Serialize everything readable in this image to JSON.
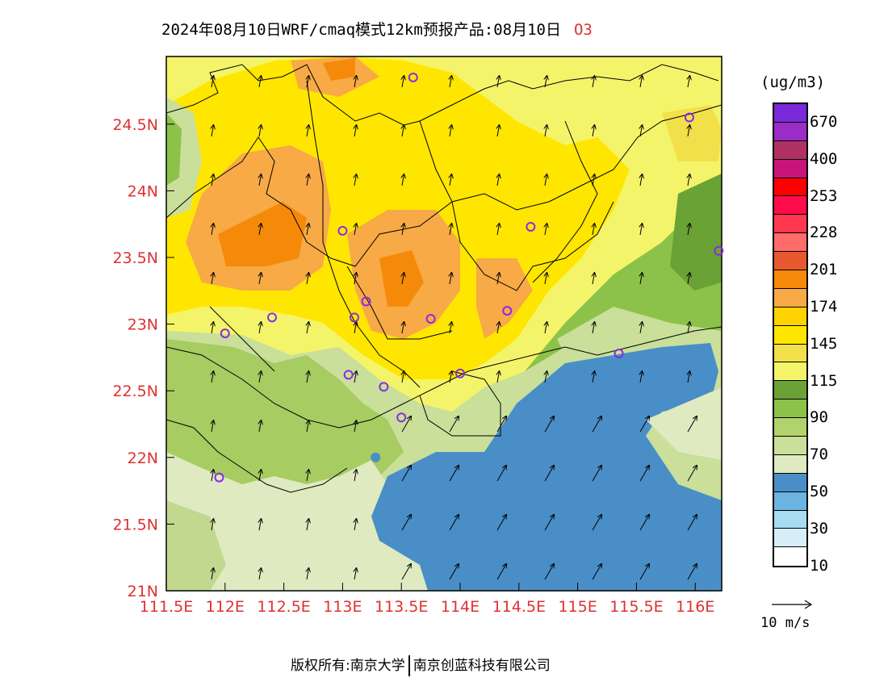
{
  "title": {
    "main": "2024年08月10日WRF/cmaq模式12km预报产品:08月10日",
    "species": "O3"
  },
  "axes": {
    "x_ticks": [
      "111.5E",
      "112E",
      "112.5E",
      "113E",
      "113.5E",
      "114E",
      "114.5E",
      "115E",
      "115.5E",
      "116E"
    ],
    "y_ticks": [
      "21N",
      "21.5N",
      "22N",
      "22.5N",
      "23N",
      "23.5N",
      "24N",
      "24.5N"
    ],
    "lon_range": [
      111.5,
      116.2
    ],
    "lat_range": [
      21.0,
      25.0
    ]
  },
  "colorbar": {
    "unit": "(ug/m3)",
    "colors": [
      "#ffffff",
      "#d6eef8",
      "#a8dcf0",
      "#6cb4e0",
      "#4a8ec8",
      "#dfeac0",
      "#c9df9a",
      "#b2d26e",
      "#8cc24a",
      "#6aa236",
      "#f4f46a",
      "#f2e04a",
      "#ffe600",
      "#ffd200",
      "#f7aa46",
      "#f58a0a",
      "#e8582e",
      "#ff6a6a",
      "#ff3850",
      "#ff0c4a",
      "#ff0000",
      "#c8147a",
      "#b03262",
      "#9a2cc8",
      "#7a28d8"
    ],
    "labels": [
      "10",
      "30",
      "50",
      "70",
      "90",
      "115",
      "145",
      "174",
      "201",
      "228",
      "253",
      "400",
      "670"
    ]
  },
  "wind_reference": {
    "label": "10 m/s"
  },
  "stations": [
    {
      "lon": 113.6,
      "lat": 24.85,
      "color": "#8b2be2"
    },
    {
      "lon": 115.95,
      "lat": 24.55,
      "color": "#8b2be2"
    },
    {
      "lon": 113.0,
      "lat": 23.7,
      "color": "#8b2be2"
    },
    {
      "lon": 114.6,
      "lat": 23.73,
      "color": "#8b2be2"
    },
    {
      "lon": 116.2,
      "lat": 23.55,
      "color": "#8b2be2"
    },
    {
      "lon": 112.4,
      "lat": 23.05,
      "color": "#8b2be2"
    },
    {
      "lon": 113.1,
      "lat": 23.05,
      "color": "#8b2be2"
    },
    {
      "lon": 113.2,
      "lat": 23.17,
      "color": "#8b2be2"
    },
    {
      "lon": 113.75,
      "lat": 23.04,
      "color": "#8b2be2"
    },
    {
      "lon": 114.4,
      "lat": 23.1,
      "color": "#8b2be2"
    },
    {
      "lon": 112.0,
      "lat": 22.93,
      "color": "#8b2be2"
    },
    {
      "lon": 115.35,
      "lat": 22.78,
      "color": "#8b2be2"
    },
    {
      "lon": 113.05,
      "lat": 22.62,
      "color": "#8b2be2"
    },
    {
      "lon": 113.35,
      "lat": 22.53,
      "color": "#8b2be2"
    },
    {
      "lon": 113.5,
      "lat": 22.3,
      "color": "#8b2be2"
    },
    {
      "lon": 114.0,
      "lat": 22.63,
      "color": "#8b2be2"
    },
    {
      "lon": 113.28,
      "lat": 22.0,
      "color": "#4a8ec8"
    },
    {
      "lon": 111.95,
      "lat": 21.85,
      "color": "#8b2be2"
    }
  ],
  "footer": {
    "copyright": "版权所有:南京大学",
    "company": "南京创蓝科技有限公司"
  }
}
